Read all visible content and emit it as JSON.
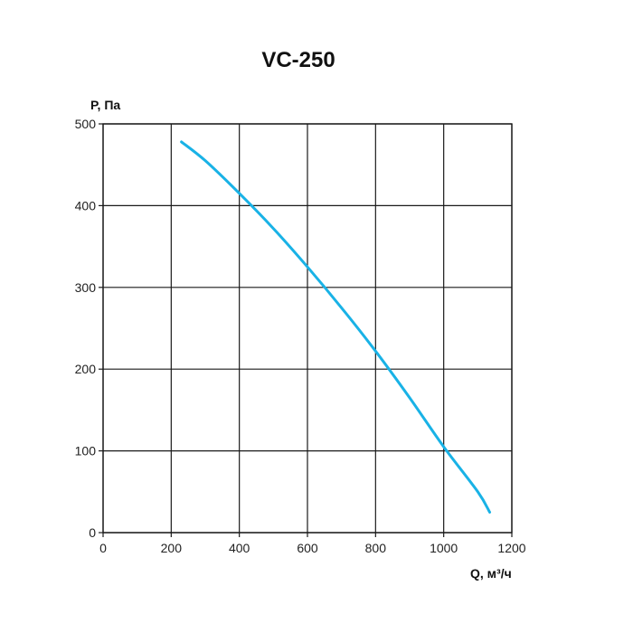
{
  "chart_data": {
    "type": "line",
    "title": "VC-250",
    "ylabel": "P, Па",
    "xlabel": "Q, м³/ч",
    "xlim": [
      0,
      1200
    ],
    "ylim": [
      0,
      500
    ],
    "xticks": [
      0,
      200,
      400,
      600,
      800,
      1000,
      1200
    ],
    "yticks": [
      0,
      100,
      200,
      300,
      400,
      500
    ],
    "grid": true,
    "series": [
      {
        "color": "#19b2e6",
        "x": [
          230,
          300,
          400,
          500,
          600,
          700,
          800,
          900,
          1000,
          1100,
          1135
        ],
        "y": [
          478,
          455,
          415,
          372,
          325,
          275,
          222,
          165,
          105,
          50,
          25
        ]
      }
    ]
  }
}
